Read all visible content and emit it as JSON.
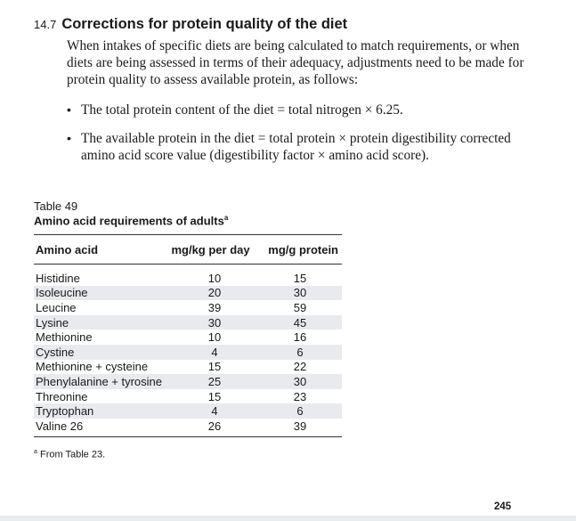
{
  "section": {
    "number": "14.7",
    "title": "Corrections for protein quality of the diet"
  },
  "intro": "When intakes of specific diets are being calculated to match requirements, or when diets are being assessed in terms of their adequacy, adjustments need to be made for protein quality to assess available protein, as follows:",
  "bullets": [
    "The total protein content of the diet = total nitrogen × 6.25.",
    "The available protein in the diet = total protein × protein digestibility corrected amino acid score value (digestibility factor × amino acid score)."
  ],
  "table": {
    "label": "Table 49",
    "caption": "Amino acid requirements of adults",
    "caption_note_marker": "a",
    "columns": [
      "Amino acid",
      "mg/kg per day",
      "mg/g protein"
    ],
    "rows": [
      {
        "amino_acid": "Histidine",
        "mg_per_kg_per_day": "10",
        "mg_per_g_protein": "15"
      },
      {
        "amino_acid": "Isoleucine",
        "mg_per_kg_per_day": "20",
        "mg_per_g_protein": "30"
      },
      {
        "amino_acid": "Leucine",
        "mg_per_kg_per_day": "39",
        "mg_per_g_protein": "59"
      },
      {
        "amino_acid": "Lysine",
        "mg_per_kg_per_day": "30",
        "mg_per_g_protein": "45"
      },
      {
        "amino_acid": "Methionine",
        "mg_per_kg_per_day": "10",
        "mg_per_g_protein": "16"
      },
      {
        "amino_acid": "Cystine",
        "mg_per_kg_per_day": "4",
        "mg_per_g_protein": "6"
      },
      {
        "amino_acid": "Methionine + cysteine",
        "mg_per_kg_per_day": "15",
        "mg_per_g_protein": "22"
      },
      {
        "amino_acid": "Phenylalanine + tyrosine",
        "mg_per_kg_per_day": "25",
        "mg_per_g_protein": "30"
      },
      {
        "amino_acid": "Threonine",
        "mg_per_kg_per_day": "15",
        "mg_per_g_protein": "23"
      },
      {
        "amino_acid": "Tryptophan",
        "mg_per_kg_per_day": "4",
        "mg_per_g_protein": "6"
      },
      {
        "amino_acid": "Valine 26",
        "mg_per_kg_per_day": "26",
        "mg_per_g_protein": "39"
      }
    ],
    "footnote_marker": "a",
    "footnote": "From Table 23."
  },
  "page_number": "245"
}
